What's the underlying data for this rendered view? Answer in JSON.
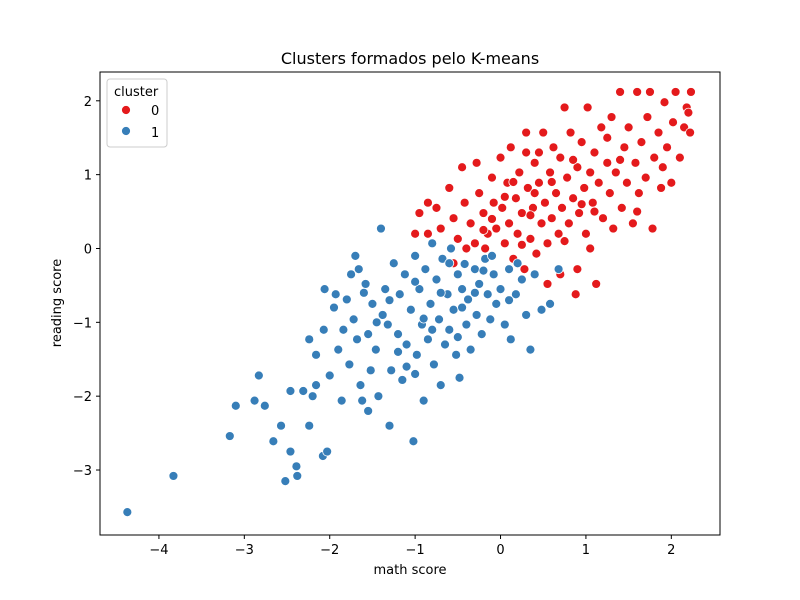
{
  "chart_data": {
    "type": "scatter",
    "title": "Clusters formados pelo K-means",
    "xlabel": "math score",
    "ylabel": "reading score",
    "xlim": [
      -4.69,
      2.57
    ],
    "ylim": [
      -3.88,
      2.39
    ],
    "xticks": [
      -4,
      -3,
      -2,
      -1,
      0,
      1,
      2
    ],
    "yticks": [
      -3,
      -2,
      -1,
      0,
      1,
      2
    ],
    "xtick_labels": [
      "−4",
      "−3",
      "−2",
      "−1",
      "0",
      "1",
      "2"
    ],
    "ytick_labels": [
      "−3",
      "−2",
      "−1",
      "0",
      "1",
      "2"
    ],
    "grid": false,
    "legend": {
      "title": "cluster",
      "placement": "top-left"
    },
    "series": [
      {
        "name": "0",
        "color": "#e41a1c",
        "points": [
          [
            -1.0,
            0.2
          ],
          [
            -0.95,
            0.48
          ],
          [
            -0.85,
            0.2
          ],
          [
            -0.75,
            0.55
          ],
          [
            -0.7,
            0.27
          ],
          [
            -0.6,
            0.82
          ],
          [
            -0.55,
            0.41
          ],
          [
            -0.5,
            0.13
          ],
          [
            -0.45,
            1.1
          ],
          [
            -0.42,
            0.62
          ],
          [
            -0.35,
            0.34
          ],
          [
            -0.3,
            0.07
          ],
          [
            -0.28,
            1.16
          ],
          [
            -0.25,
            0.75
          ],
          [
            -0.2,
            0.48
          ],
          [
            -0.15,
            0.2
          ],
          [
            -0.1,
            0.96
          ],
          [
            -0.08,
            0.62
          ],
          [
            -0.05,
            0.27
          ],
          [
            0.0,
            1.23
          ],
          [
            0.02,
            0.55
          ],
          [
            0.05,
            0.07
          ],
          [
            0.08,
            0.89
          ],
          [
            0.1,
            0.34
          ],
          [
            0.12,
            1.37
          ],
          [
            0.15,
            -0.14
          ],
          [
            0.18,
            0.68
          ],
          [
            0.2,
            0.2
          ],
          [
            0.22,
            1.03
          ],
          [
            0.25,
            0.48
          ],
          [
            0.28,
            -0.28
          ],
          [
            0.3,
            1.3
          ],
          [
            0.32,
            0.82
          ],
          [
            0.35,
            0.13
          ],
          [
            0.38,
            0.55
          ],
          [
            0.4,
            1.16
          ],
          [
            0.42,
            -0.07
          ],
          [
            0.45,
            0.89
          ],
          [
            0.48,
            0.34
          ],
          [
            0.5,
            1.57
          ],
          [
            0.52,
            0.62
          ],
          [
            0.55,
            0.07
          ],
          [
            0.58,
            1.03
          ],
          [
            0.6,
            0.41
          ],
          [
            0.62,
            1.37
          ],
          [
            0.65,
            0.75
          ],
          [
            0.68,
            0.2
          ],
          [
            0.7,
            1.23
          ],
          [
            0.72,
            0.55
          ],
          [
            0.75,
            1.91
          ],
          [
            0.78,
            0.96
          ],
          [
            0.8,
            0.34
          ],
          [
            0.82,
            1.57
          ],
          [
            0.85,
            0.68
          ],
          [
            0.88,
            -0.62
          ],
          [
            0.9,
            1.1
          ],
          [
            0.92,
            0.48
          ],
          [
            0.95,
            1.44
          ],
          [
            0.98,
            0.82
          ],
          [
            1.0,
            0.2
          ],
          [
            1.02,
            1.91
          ],
          [
            1.05,
            1.03
          ],
          [
            1.08,
            0.62
          ],
          [
            1.1,
            1.3
          ],
          [
            1.12,
            -0.48
          ],
          [
            1.15,
            0.89
          ],
          [
            1.18,
            1.64
          ],
          [
            1.2,
            0.41
          ],
          [
            1.25,
            1.16
          ],
          [
            1.28,
            0.75
          ],
          [
            1.3,
            1.78
          ],
          [
            1.32,
            0.27
          ],
          [
            1.35,
            1.03
          ],
          [
            1.4,
            2.12
          ],
          [
            1.42,
            0.55
          ],
          [
            1.45,
            1.37
          ],
          [
            1.48,
            0.89
          ],
          [
            1.5,
            1.64
          ],
          [
            1.55,
            0.34
          ],
          [
            1.58,
            1.16
          ],
          [
            1.6,
            2.12
          ],
          [
            1.62,
            0.75
          ],
          [
            1.65,
            1.44
          ],
          [
            1.7,
            0.96
          ],
          [
            1.72,
            1.78
          ],
          [
            1.75,
            2.12
          ],
          [
            1.78,
            0.27
          ],
          [
            1.8,
            1.23
          ],
          [
            1.85,
            1.57
          ],
          [
            1.88,
            0.82
          ],
          [
            1.92,
            1.98
          ],
          [
            1.95,
            1.37
          ],
          [
            2.0,
            0.89
          ],
          [
            2.02,
            1.71
          ],
          [
            2.05,
            2.12
          ],
          [
            2.1,
            1.23
          ],
          [
            2.15,
            1.64
          ],
          [
            2.18,
            1.91
          ],
          [
            2.22,
            1.57
          ],
          [
            2.23,
            2.12
          ],
          [
            2.2,
            1.84
          ],
          [
            0.9,
            -0.28
          ],
          [
            0.55,
            -0.48
          ],
          [
            -0.55,
            -0.2
          ],
          [
            -0.18,
            0.0
          ],
          [
            0.7,
            -0.35
          ],
          [
            1.05,
            0.0
          ],
          [
            -0.85,
            0.62
          ],
          [
            0.3,
            1.57
          ],
          [
            -0.4,
            0.0
          ],
          [
            0.15,
            0.9
          ],
          [
            0.45,
            1.3
          ],
          [
            0.85,
            1.2
          ],
          [
            1.1,
            0.5
          ],
          [
            1.25,
            1.5
          ],
          [
            0.6,
            0.9
          ],
          [
            0.25,
            0.05
          ],
          [
            -0.1,
            0.4
          ],
          [
            0.05,
            0.7
          ],
          [
            0.35,
            0.45
          ],
          [
            0.95,
            0.6
          ],
          [
            1.4,
            1.2
          ],
          [
            1.6,
            0.5
          ],
          [
            1.9,
            1.1
          ],
          [
            0.75,
            0.1
          ],
          [
            0.4,
            0.75
          ],
          [
            -0.2,
            0.25
          ]
        ]
      },
      {
        "name": "1",
        "color": "#377eb8",
        "points": [
          [
            -4.37,
            -3.57
          ],
          [
            -3.83,
            -3.08
          ],
          [
            -3.17,
            -2.54
          ],
          [
            -3.1,
            -2.13
          ],
          [
            -2.88,
            -2.06
          ],
          [
            -2.83,
            -1.72
          ],
          [
            -2.76,
            -2.13
          ],
          [
            -2.66,
            -2.61
          ],
          [
            -2.57,
            -2.4
          ],
          [
            -2.52,
            -3.15
          ],
          [
            -2.46,
            -2.75
          ],
          [
            -2.46,
            -1.93
          ],
          [
            -2.39,
            -2.95
          ],
          [
            -2.38,
            -3.08
          ],
          [
            -2.31,
            -1.93
          ],
          [
            -2.24,
            -2.4
          ],
          [
            -2.24,
            -1.23
          ],
          [
            -2.2,
            -2.0
          ],
          [
            -2.16,
            -1.85
          ],
          [
            -2.16,
            -1.44
          ],
          [
            -2.08,
            -2.81
          ],
          [
            -2.03,
            -2.75
          ],
          [
            -2.07,
            -1.1
          ],
          [
            -2.06,
            -0.55
          ],
          [
            -2.0,
            -1.72
          ],
          [
            -1.93,
            -0.62
          ],
          [
            -1.9,
            -1.37
          ],
          [
            -1.86,
            -2.06
          ],
          [
            -1.84,
            -1.1
          ],
          [
            -1.8,
            -0.69
          ],
          [
            -1.77,
            -1.57
          ],
          [
            -1.75,
            -0.35
          ],
          [
            -1.72,
            -0.96
          ],
          [
            -1.68,
            -1.23
          ],
          [
            -1.66,
            -0.28
          ],
          [
            -1.64,
            -1.85
          ],
          [
            -1.62,
            -2.06
          ],
          [
            -1.58,
            -0.48
          ],
          [
            -1.55,
            -1.16
          ],
          [
            -1.52,
            -1.65
          ],
          [
            -1.5,
            -0.75
          ],
          [
            -1.46,
            -1.37
          ],
          [
            -1.43,
            -2.0
          ],
          [
            -1.4,
            0.27
          ],
          [
            -1.38,
            -0.9
          ],
          [
            -1.35,
            -0.55
          ],
          [
            -1.32,
            -1.03
          ],
          [
            -1.3,
            -2.4
          ],
          [
            -1.28,
            -1.65
          ],
          [
            -1.25,
            -0.2
          ],
          [
            -1.2,
            -1.16
          ],
          [
            -1.18,
            -0.62
          ],
          [
            -1.15,
            -1.78
          ],
          [
            -1.12,
            -0.35
          ],
          [
            -1.1,
            -1.3
          ],
          [
            -1.05,
            -0.83
          ],
          [
            -1.02,
            -2.61
          ],
          [
            -1.0,
            -0.1
          ],
          [
            -0.98,
            -1.44
          ],
          [
            -0.95,
            -0.55
          ],
          [
            -0.92,
            -1.03
          ],
          [
            -0.9,
            -2.06
          ],
          [
            -0.88,
            -0.28
          ],
          [
            -0.85,
            -1.23
          ],
          [
            -0.82,
            -0.75
          ],
          [
            -0.8,
            0.07
          ],
          [
            -0.78,
            -1.57
          ],
          [
            -0.75,
            -0.42
          ],
          [
            -0.72,
            -0.96
          ],
          [
            -0.7,
            -1.85
          ],
          [
            -0.68,
            -0.14
          ],
          [
            -0.65,
            -1.3
          ],
          [
            -0.62,
            -0.62
          ],
          [
            -0.6,
            -1.1
          ],
          [
            -0.58,
            0.0
          ],
          [
            -0.55,
            -0.83
          ],
          [
            -0.52,
            -1.44
          ],
          [
            -0.5,
            -0.35
          ],
          [
            -0.48,
            -1.75
          ],
          [
            -0.45,
            -0.55
          ],
          [
            -0.42,
            -0.21
          ],
          [
            -0.4,
            -1.03
          ],
          [
            -0.38,
            -0.69
          ],
          [
            -0.35,
            -1.37
          ],
          [
            -0.3,
            -0.28
          ],
          [
            -0.28,
            -0.9
          ],
          [
            -0.25,
            -0.48
          ],
          [
            -0.22,
            -1.16
          ],
          [
            -0.18,
            -0.14
          ],
          [
            -0.15,
            -0.62
          ],
          [
            -0.12,
            -0.96
          ],
          [
            -0.08,
            -0.35
          ],
          [
            -0.05,
            -0.75
          ],
          [
            0.0,
            -0.55
          ],
          [
            0.05,
            -1.03
          ],
          [
            0.1,
            -0.28
          ],
          [
            0.12,
            -1.23
          ],
          [
            0.18,
            -0.62
          ],
          [
            0.25,
            -0.42
          ],
          [
            0.3,
            -0.9
          ],
          [
            0.35,
            -1.37
          ],
          [
            0.4,
            -0.35
          ],
          [
            0.48,
            -0.83
          ],
          [
            0.58,
            -0.75
          ],
          [
            0.68,
            -0.28
          ],
          [
            -1.7,
            -0.1
          ],
          [
            -1.95,
            -0.8
          ],
          [
            -1.55,
            -2.2
          ],
          [
            -0.9,
            -0.95
          ],
          [
            -1.1,
            -1.6
          ],
          [
            -1.3,
            -0.7
          ],
          [
            -1.0,
            -0.45
          ],
          [
            -0.7,
            -0.6
          ],
          [
            -0.45,
            -0.8
          ],
          [
            -0.2,
            -0.3
          ],
          [
            0.1,
            -0.7
          ],
          [
            -1.45,
            -1.0
          ],
          [
            -1.2,
            -1.4
          ],
          [
            -0.6,
            -0.2
          ],
          [
            -0.3,
            -0.6
          ],
          [
            -0.8,
            -1.1
          ],
          [
            -1.6,
            -0.6
          ],
          [
            -0.1,
            -0.1
          ],
          [
            0.2,
            -0.2
          ],
          [
            -0.5,
            -1.2
          ],
          [
            -1.0,
            -1.7
          ]
        ]
      }
    ]
  }
}
